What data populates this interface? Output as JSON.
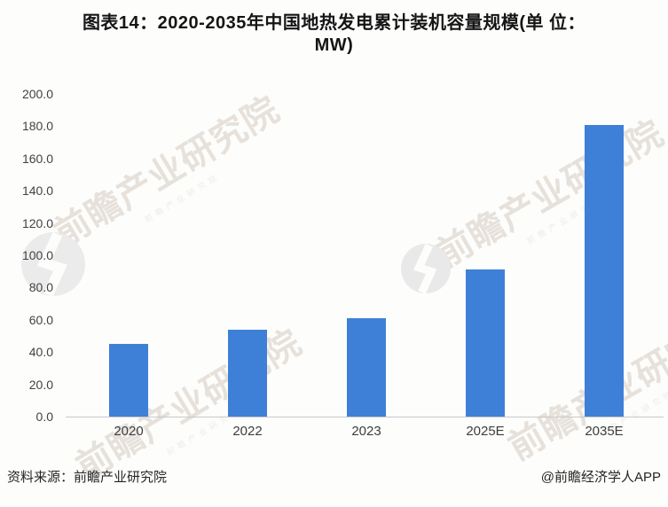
{
  "title": {
    "line1": "图表14：2020-2035年中国地热发电累计装机容量规模(单 位：",
    "line2": "MW)"
  },
  "chart_data": {
    "type": "bar",
    "title": "图表14：2020-2035年中国地热发电累计装机容量规模(单位：MW)",
    "categories": [
      "2020",
      "2022",
      "2023",
      "2025E",
      "2035E"
    ],
    "values": [
      45,
      54,
      61,
      91,
      181
    ],
    "unit": "MW",
    "xlabel": "",
    "ylabel": "",
    "ylim": [
      0,
      200
    ],
    "ytick_step": 20,
    "ytick_decimals": 1,
    "grid": false,
    "legend": null,
    "bar_color": "#3E80D8"
  },
  "watermark": {
    "text": "前瞻产业研究院",
    "logo": "qianzhan-swoosh-logo"
  },
  "footer": {
    "source": "资料来源：前瞻产业研究院",
    "credit": "@前瞻经济学人APP"
  }
}
